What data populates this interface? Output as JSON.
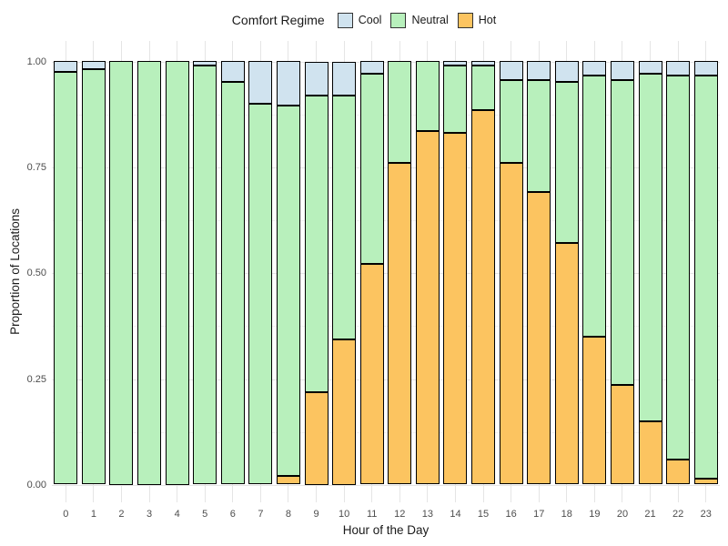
{
  "chart_data": {
    "type": "bar",
    "stacked": true,
    "orientation": "vertical",
    "legend_title": "Comfort Regime",
    "legend_position": "top",
    "xlabel": "Hour of the Day",
    "ylabel": "Proportion of Locations",
    "categories": [
      "0",
      "1",
      "2",
      "3",
      "4",
      "5",
      "6",
      "7",
      "8",
      "9",
      "10",
      "11",
      "12",
      "13",
      "14",
      "15",
      "16",
      "17",
      "18",
      "19",
      "20",
      "21",
      "22",
      "23"
    ],
    "series": [
      {
        "name": "Cool",
        "color": "#d0e3ef",
        "values": [
          0.025,
          0.02,
          0,
          0,
          0,
          0.01,
          0.05,
          0.1,
          0.105,
          0.08,
          0.08,
          0.03,
          0,
          0,
          0.01,
          0.01,
          0.045,
          0.045,
          0.05,
          0.035,
          0.045,
          0.03,
          0.035,
          0.035
        ]
      },
      {
        "name": "Neutral",
        "color": "#b8f0bc",
        "values": [
          0.975,
          0.98,
          1,
          1,
          1,
          0.99,
          0.95,
          0.9,
          0.875,
          0.7,
          0.575,
          0.45,
          0.24,
          0.165,
          0.16,
          0.105,
          0.195,
          0.265,
          0.38,
          0.615,
          0.72,
          0.82,
          0.905,
          0.95
        ]
      },
      {
        "name": "Hot",
        "color": "#fcc460",
        "values": [
          0,
          0,
          0,
          0,
          0,
          0,
          0,
          0,
          0.02,
          0.22,
          0.345,
          0.52,
          0.76,
          0.835,
          0.83,
          0.885,
          0.76,
          0.69,
          0.57,
          0.35,
          0.235,
          0.15,
          0.06,
          0.015
        ]
      }
    ],
    "stack_order_bottom_to_top": [
      "Hot",
      "Neutral",
      "Cool"
    ],
    "ylim": [
      0,
      1
    ],
    "yticks": [
      {
        "value": 0.0,
        "label": "0.00"
      },
      {
        "value": 0.25,
        "label": "0.25"
      },
      {
        "value": 0.5,
        "label": "0.50"
      },
      {
        "value": 0.75,
        "label": "0.75"
      },
      {
        "value": 1.0,
        "label": "1.00"
      }
    ],
    "y_minor_gridlines": [
      0.125,
      0.375,
      0.625,
      0.875
    ],
    "grid": "major-and-minor, no axis lines, no tick marks",
    "colors": {
      "bar_outline": "#000000",
      "grid_major": "#e5e5e5",
      "grid_minor": "#f2f2f2",
      "axis_text": "#4d4d4d",
      "title_text": "#1a1a1a",
      "background": "#ffffff"
    }
  }
}
